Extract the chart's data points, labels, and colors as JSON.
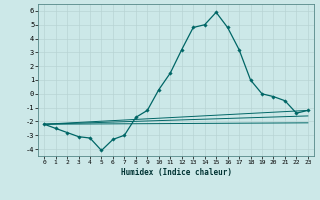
{
  "title": "",
  "xlabel": "Humidex (Indice chaleur)",
  "ylabel": "",
  "bg_color": "#cce8e8",
  "grid_color": "#c8dede",
  "line_color": "#006666",
  "xlim": [
    -0.5,
    23.5
  ],
  "ylim": [
    -4.5,
    6.5
  ],
  "xticks": [
    0,
    1,
    2,
    3,
    4,
    5,
    6,
    7,
    8,
    9,
    10,
    11,
    12,
    13,
    14,
    15,
    16,
    17,
    18,
    19,
    20,
    21,
    22,
    23
  ],
  "yticks": [
    -4,
    -3,
    -2,
    -1,
    0,
    1,
    2,
    3,
    4,
    5,
    6
  ],
  "line1_x": [
    0,
    1,
    2,
    3,
    4,
    5,
    6,
    7,
    8,
    9,
    10,
    11,
    12,
    13,
    14,
    15,
    16,
    17,
    18,
    19,
    20,
    21,
    22,
    23
  ],
  "line1_y": [
    -2.2,
    -2.5,
    -2.8,
    -3.1,
    -3.2,
    -4.1,
    -3.3,
    -3.0,
    -1.7,
    -1.2,
    0.3,
    1.5,
    3.2,
    4.8,
    5.0,
    5.9,
    4.8,
    3.2,
    1.0,
    0.0,
    -0.2,
    -0.5,
    -1.4,
    -1.2
  ],
  "line2_x": [
    0,
    23
  ],
  "line2_y": [
    -2.2,
    -1.2
  ],
  "line3_x": [
    0,
    23
  ],
  "line3_y": [
    -2.2,
    -1.6
  ],
  "line4_x": [
    0,
    23
  ],
  "line4_y": [
    -2.2,
    -2.1
  ]
}
